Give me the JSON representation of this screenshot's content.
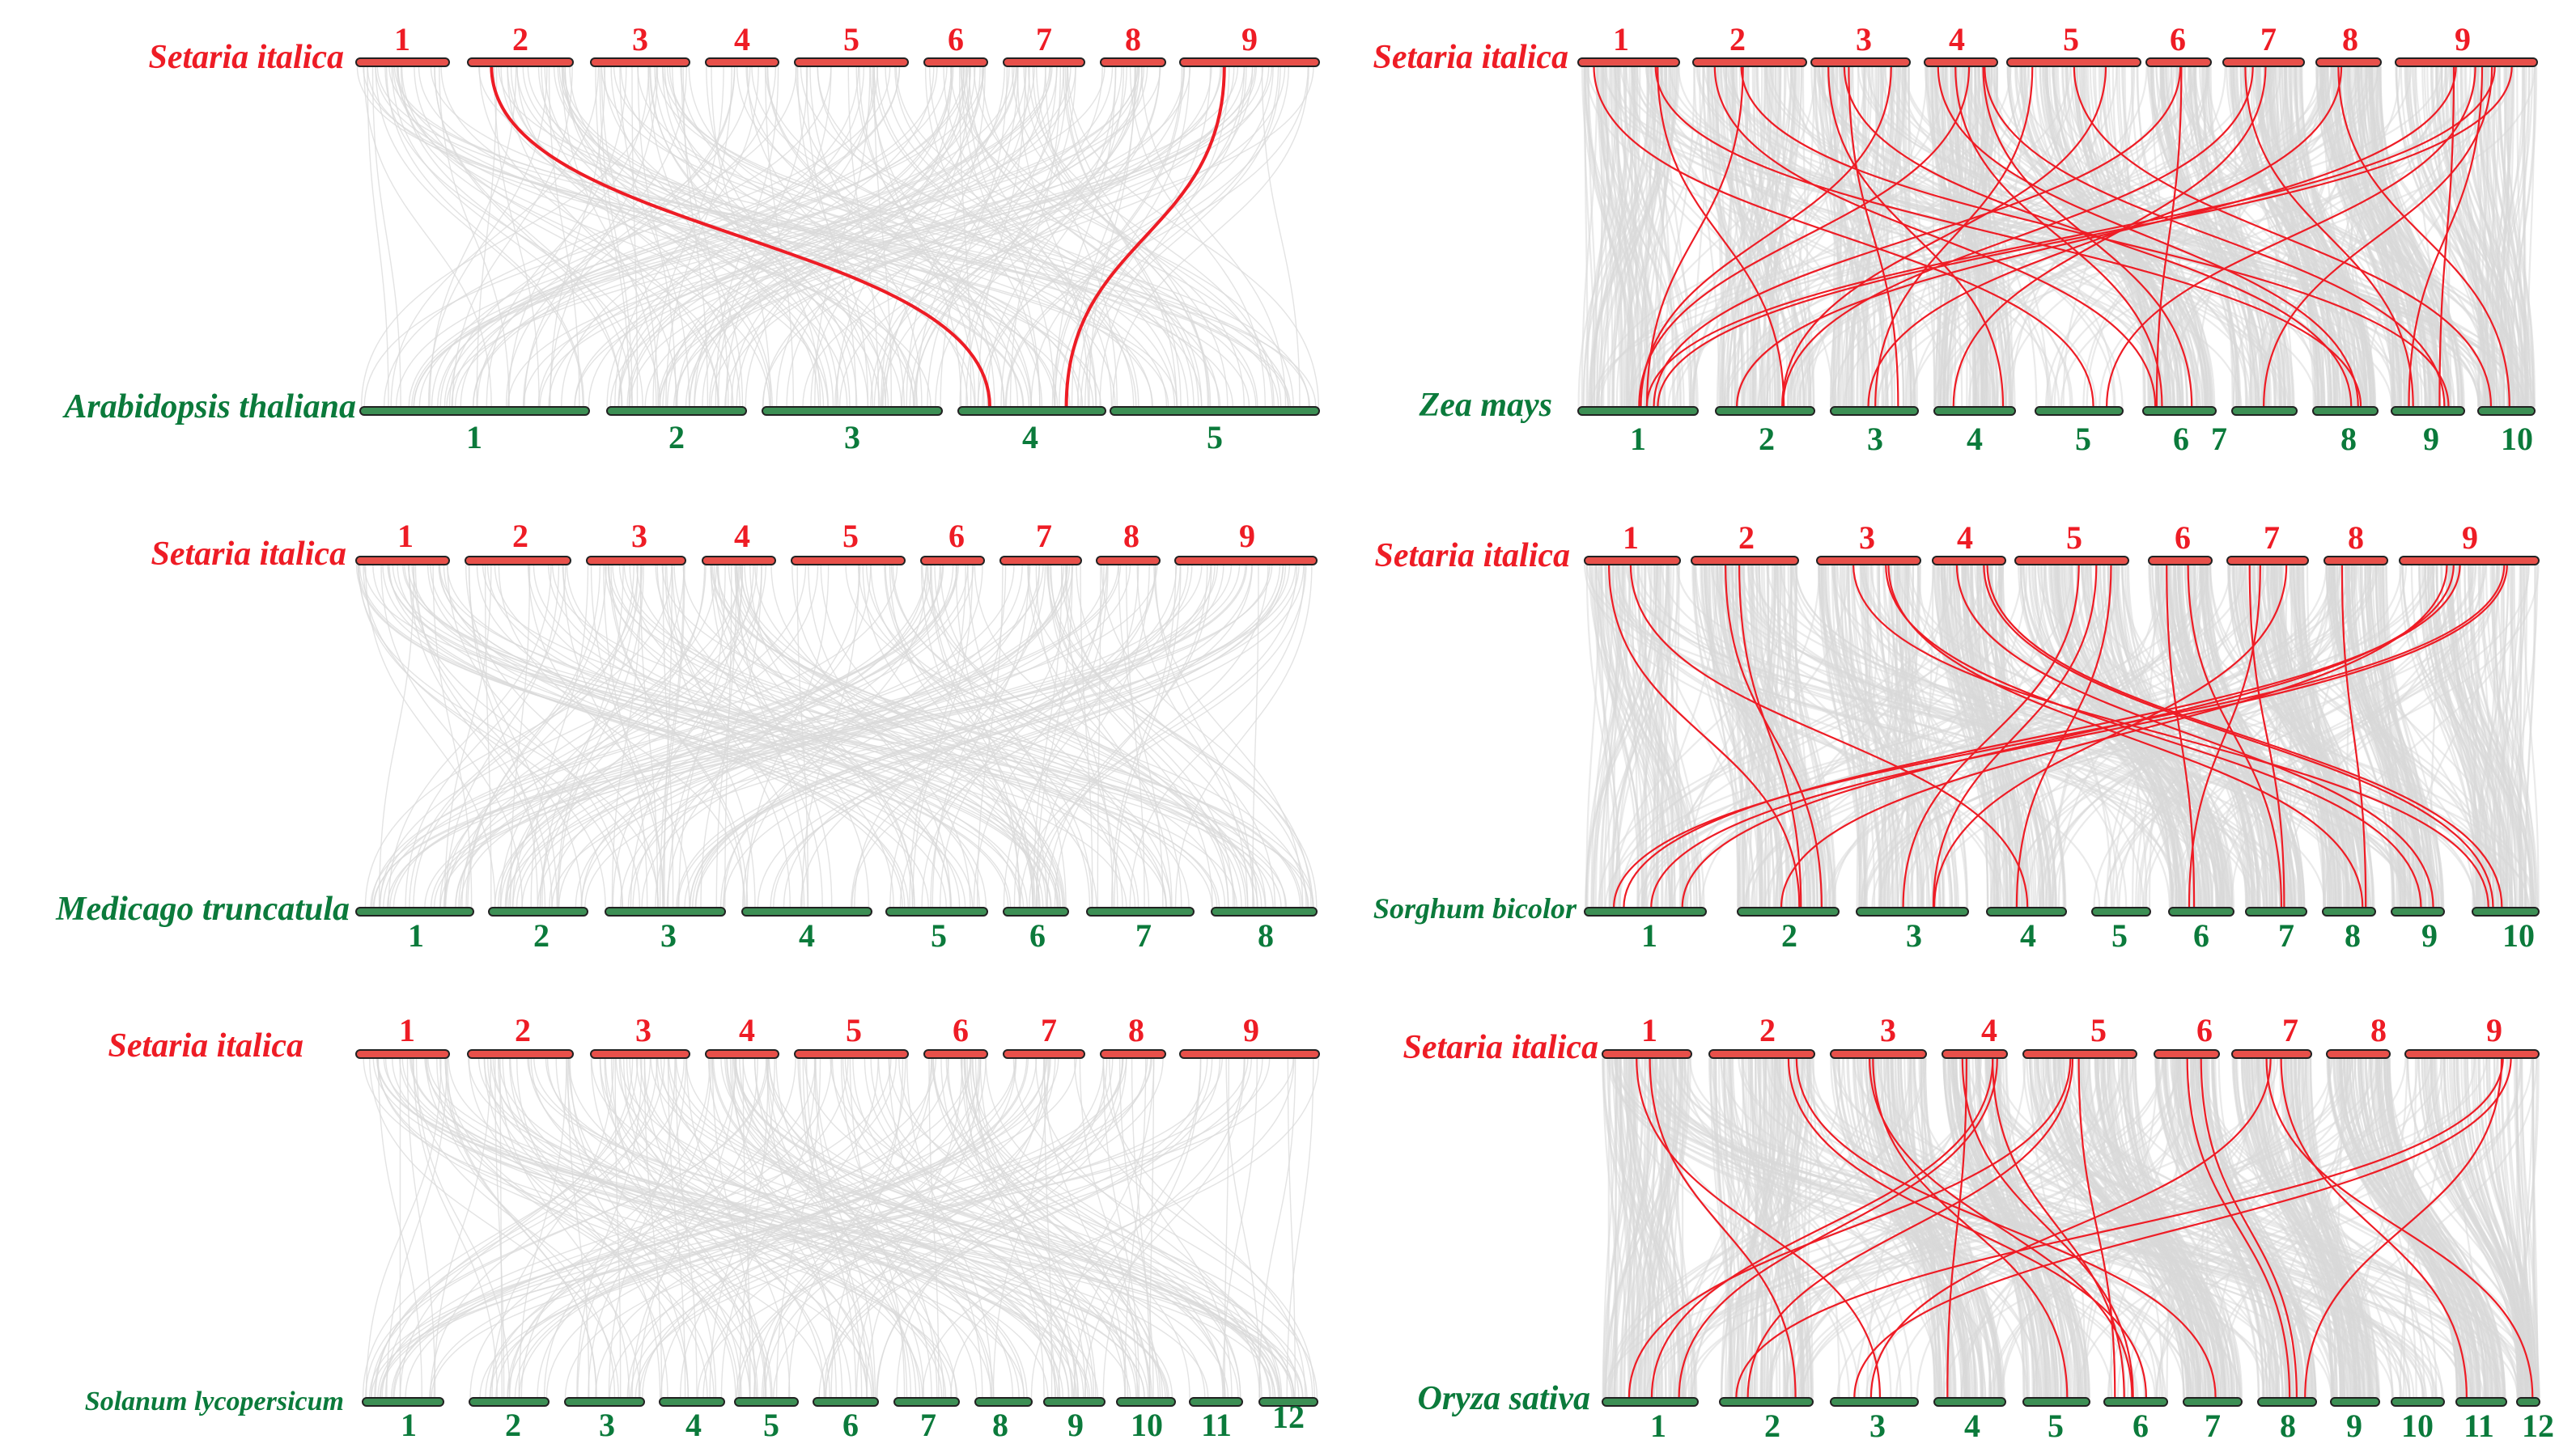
{
  "colors": {
    "top_species": "#ee1c25",
    "bottom_species": "#0b7a3b",
    "top_bar_fill": "#e8504a",
    "bottom_bar_fill": "#3c8f54",
    "bar_outline": "#222222",
    "background_link": "#d9d9d9",
    "highlight_link": "#ee1c25"
  },
  "panels": [
    {
      "id": "arabidopsis",
      "top_species": "Setaria italica",
      "bottom_species": "Arabidopsis thaliana",
      "top_chromosomes": [
        "1",
        "2",
        "3",
        "4",
        "5",
        "6",
        "7",
        "8",
        "9"
      ],
      "bottom_chromosomes": [
        "1",
        "2",
        "3",
        "4",
        "5"
      ],
      "background_density": "sparse",
      "highlight_links": [
        {
          "from": "2",
          "to": "4"
        },
        {
          "from": "9",
          "to": "4"
        }
      ]
    },
    {
      "id": "zea",
      "top_species": "Setaria italica",
      "bottom_species": "Zea mays",
      "top_chromosomes": [
        "1",
        "2",
        "3",
        "4",
        "5",
        "6",
        "7",
        "8",
        "9"
      ],
      "bottom_chromosomes": [
        "1",
        "2",
        "3",
        "4",
        "5",
        "6",
        "7",
        "8",
        "9",
        "10"
      ],
      "background_density": "dense",
      "highlight_links": [
        {
          "from": "1",
          "to": "2"
        },
        {
          "from": "1",
          "to": "8"
        },
        {
          "from": "1",
          "to": "5"
        },
        {
          "from": "2",
          "to": "1"
        },
        {
          "from": "2",
          "to": "9"
        },
        {
          "from": "2",
          "to": "6"
        },
        {
          "from": "3",
          "to": "1"
        },
        {
          "from": "3",
          "to": "3"
        },
        {
          "from": "3",
          "to": "4"
        },
        {
          "from": "3",
          "to": "8"
        },
        {
          "from": "4",
          "to": "6"
        },
        {
          "from": "4",
          "to": "6"
        },
        {
          "from": "4",
          "to": "8"
        },
        {
          "from": "4",
          "to": "9"
        },
        {
          "from": "4",
          "to": "1"
        },
        {
          "from": "5",
          "to": "2"
        },
        {
          "from": "5",
          "to": "3"
        },
        {
          "from": "5",
          "to": "10"
        },
        {
          "from": "6",
          "to": "6"
        },
        {
          "from": "6",
          "to": "1"
        },
        {
          "from": "7",
          "to": "2"
        },
        {
          "from": "7",
          "to": "9"
        },
        {
          "from": "7",
          "to": "4"
        },
        {
          "from": "8",
          "to": "3"
        },
        {
          "from": "8",
          "to": "10"
        },
        {
          "from": "9",
          "to": "1"
        },
        {
          "from": "9",
          "to": "1"
        },
        {
          "from": "9",
          "to": "2"
        },
        {
          "from": "9",
          "to": "5"
        },
        {
          "from": "9",
          "to": "9"
        },
        {
          "from": "9",
          "to": "9"
        },
        {
          "from": "9",
          "to": "7"
        }
      ]
    },
    {
      "id": "medicago",
      "top_species": "Setaria italica",
      "bottom_species": "Medicago truncatula",
      "top_chromosomes": [
        "1",
        "2",
        "3",
        "4",
        "5",
        "6",
        "7",
        "8",
        "9"
      ],
      "bottom_chromosomes": [
        "1",
        "2",
        "3",
        "4",
        "5",
        "6",
        "7",
        "8"
      ],
      "background_density": "sparse",
      "highlight_links": []
    },
    {
      "id": "sorghum",
      "top_species": "Setaria italica",
      "bottom_species": "Sorghum bicolor",
      "top_chromosomes": [
        "1",
        "2",
        "3",
        "4",
        "5",
        "6",
        "7",
        "8",
        "9"
      ],
      "bottom_chromosomes": [
        "1",
        "2",
        "3",
        "4",
        "5",
        "6",
        "7",
        "8",
        "9",
        "10"
      ],
      "background_density": "dense",
      "highlight_links": [
        {
          "from": "1",
          "to": "4"
        },
        {
          "from": "1",
          "to": "2"
        },
        {
          "from": "2",
          "to": "2"
        },
        {
          "from": "2",
          "to": "2"
        },
        {
          "from": "3",
          "to": "9"
        },
        {
          "from": "3",
          "to": "8"
        },
        {
          "from": "3",
          "to": "10"
        },
        {
          "from": "4",
          "to": "10"
        },
        {
          "from": "4",
          "to": "10"
        },
        {
          "from": "4",
          "to": "9"
        },
        {
          "from": "5",
          "to": "3"
        },
        {
          "from": "5",
          "to": "3"
        },
        {
          "from": "5",
          "to": "4"
        },
        {
          "from": "6",
          "to": "7"
        },
        {
          "from": "6",
          "to": "6"
        },
        {
          "from": "7",
          "to": "6"
        },
        {
          "from": "7",
          "to": "7"
        },
        {
          "from": "7",
          "to": "3"
        },
        {
          "from": "8",
          "to": "8"
        },
        {
          "from": "9",
          "to": "1"
        },
        {
          "from": "9",
          "to": "1"
        },
        {
          "from": "9",
          "to": "1"
        },
        {
          "from": "9",
          "to": "1"
        },
        {
          "from": "9",
          "to": "2"
        }
      ]
    },
    {
      "id": "solanum",
      "top_species": "Setaria italica",
      "bottom_species": "Solanum lycopersicum",
      "top_chromosomes": [
        "1",
        "2",
        "3",
        "4",
        "5",
        "6",
        "7",
        "8",
        "9"
      ],
      "bottom_chromosomes": [
        "1",
        "2",
        "3",
        "4",
        "5",
        "6",
        "7",
        "8",
        "9",
        "10",
        "11",
        "12"
      ],
      "background_density": "sparse",
      "highlight_links": []
    },
    {
      "id": "oryza",
      "top_species": "Setaria italica",
      "bottom_species": "Oryza sativa",
      "top_chromosomes": [
        "1",
        "2",
        "3",
        "4",
        "5",
        "6",
        "7",
        "8",
        "9"
      ],
      "bottom_chromosomes": [
        "1",
        "2",
        "3",
        "4",
        "5",
        "6",
        "7",
        "8",
        "9",
        "10",
        "11",
        "12"
      ],
      "background_density": "dense",
      "highlight_links": [
        {
          "from": "1",
          "to": "2"
        },
        {
          "from": "1",
          "to": "3"
        },
        {
          "from": "2",
          "to": "6"
        },
        {
          "from": "2",
          "to": "7"
        },
        {
          "from": "3",
          "to": "6"
        },
        {
          "from": "3",
          "to": "5"
        },
        {
          "from": "4",
          "to": "1"
        },
        {
          "from": "4",
          "to": "1"
        },
        {
          "from": "4",
          "to": "4"
        },
        {
          "from": "4",
          "to": "6"
        },
        {
          "from": "4",
          "to": "6"
        },
        {
          "from": "5",
          "to": "1"
        },
        {
          "from": "5",
          "to": "2"
        },
        {
          "from": "5",
          "to": "6"
        },
        {
          "from": "6",
          "to": "8"
        },
        {
          "from": "6",
          "to": "8"
        },
        {
          "from": "7",
          "to": "11"
        },
        {
          "from": "7",
          "to": "12"
        },
        {
          "from": "7",
          "to": "3"
        },
        {
          "from": "9",
          "to": "3"
        },
        {
          "from": "9",
          "to": "2"
        },
        {
          "from": "9",
          "to": "8"
        }
      ]
    }
  ]
}
